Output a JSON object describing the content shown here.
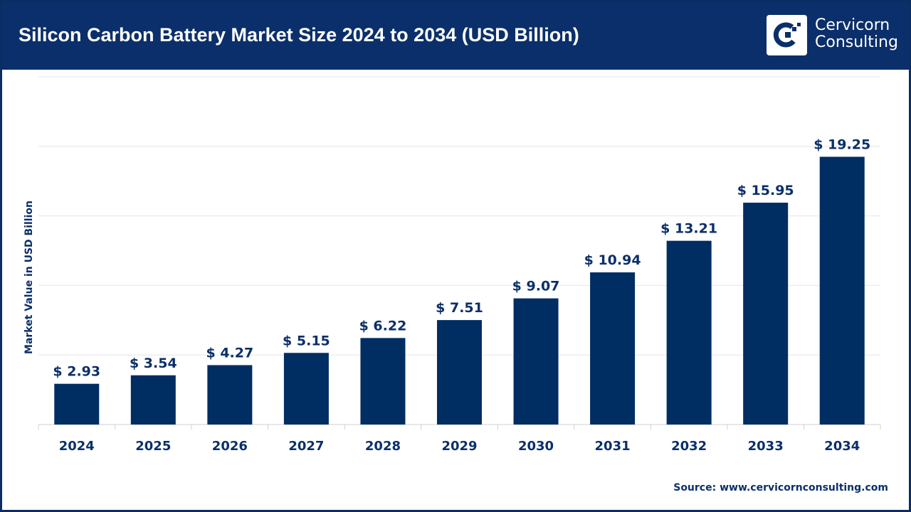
{
  "header": {
    "title": "Silicon Carbon Battery Market Size 2024 to 2034 (USD Billion)",
    "logo_text": [
      "Cervicorn",
      "Consulting"
    ]
  },
  "source": "Source: www.cervicornconsulting.com",
  "colors": {
    "header": "#0b2f6a",
    "bar": "#002d62",
    "grid": "#e6e6e6"
  },
  "chart_data": {
    "type": "bar",
    "title": "Silicon Carbon Battery Market Size 2024 to 2034 (USD Billion)",
    "xlabel": "",
    "ylabel": "Market Value in USD Billion",
    "categories": [
      "2024",
      "2025",
      "2026",
      "2027",
      "2028",
      "2029",
      "2030",
      "2031",
      "2032",
      "2033",
      "2034"
    ],
    "values": [
      2.93,
      3.54,
      4.27,
      5.15,
      6.22,
      7.51,
      9.07,
      10.94,
      13.21,
      15.95,
      19.25
    ],
    "data_labels": [
      "$ 2.93",
      "$ 3.54",
      "$ 4.27",
      "$ 5.15",
      "$ 6.22",
      "$ 7.51",
      "$ 9.07",
      "$ 10.94",
      "$ 13.21",
      "$ 15.95",
      "$ 19.25"
    ],
    "ylim": [
      0,
      25
    ],
    "grid": true,
    "y_tick_labels_shown": false,
    "legend": "none"
  }
}
